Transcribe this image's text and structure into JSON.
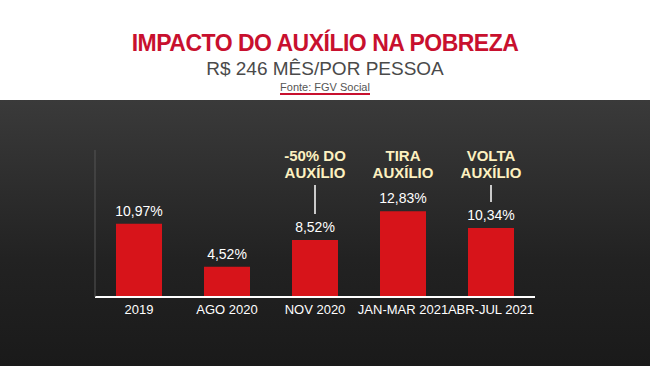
{
  "chart_data": {
    "type": "bar",
    "title": "IMPACTO DO AUXÍLIO NA POBREZA",
    "subtitle": "R$ 246 MÊS/POR PESSOA",
    "source": "Fonte: FGV Social",
    "categories": [
      "2019",
      "AGO 2020",
      "NOV 2020",
      "JAN-MAR 2021",
      "ABR-JUL 2021"
    ],
    "values": [
      10.97,
      4.52,
      8.52,
      12.83,
      10.34
    ],
    "value_labels": [
      "10,97%",
      "4,52%",
      "8,52%",
      "12,83%",
      "10,34%"
    ],
    "annotations": [
      {
        "category": "NOV 2020",
        "text": "-50% DO AUXÍLIO"
      },
      {
        "category": "JAN-MAR 2021",
        "text": "TIRA AUXÍLIO"
      },
      {
        "category": "ABR-JUL 2021",
        "text": "VOLTA AUXÍLIO"
      }
    ],
    "color": "#d7141a",
    "ylim": [
      0,
      22
    ],
    "data_labels": true,
    "tick_labels": "x",
    "grid": false
  }
}
